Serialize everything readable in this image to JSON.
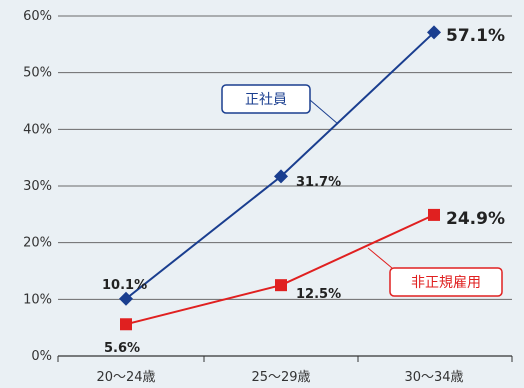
{
  "chart_data": {
    "type": "line",
    "categories": [
      "20～24歳",
      "25～29歳",
      "30～34歳"
    ],
    "ylim": [
      0,
      60
    ],
    "yticks": [
      "0%",
      "10%",
      "20%",
      "30%",
      "40%",
      "50%",
      "60%"
    ],
    "grid": true,
    "legend": "callout labels",
    "series": [
      {
        "name": "正社員",
        "values": [
          10.1,
          31.7,
          57.1
        ],
        "labels": [
          "10.1%",
          "31.7%",
          "57.1%"
        ],
        "color": "#1a3e8f",
        "marker": "diamond"
      },
      {
        "name": "非正規雇用",
        "values": [
          5.6,
          12.5,
          24.9
        ],
        "labels": [
          "5.6%",
          "12.5%",
          "24.9%"
        ],
        "color": "#e02020",
        "marker": "square"
      }
    ]
  }
}
